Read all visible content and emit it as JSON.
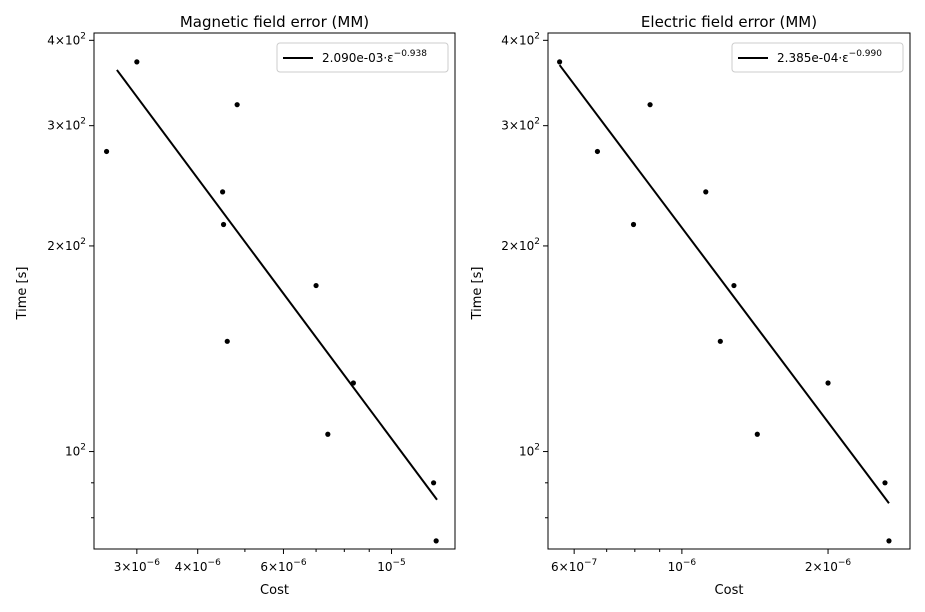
{
  "chart_data": [
    {
      "type": "scatter",
      "title": "Magnetic field error (MM)",
      "xlabel": "Cost",
      "ylabel": "Time [s]",
      "xscale": "log",
      "yscale": "log",
      "xlim": [
        2.45e-06,
        1.35e-05
      ],
      "ylim": [
        72,
        410
      ],
      "x_ticks": [
        {
          "value": 3e-06,
          "label": "3×10",
          "exp": "−6"
        },
        {
          "value": 4e-06,
          "label": "4×10",
          "exp": "−6"
        },
        {
          "value": 6e-06,
          "label": "6×10",
          "exp": "−6"
        },
        {
          "value": 1e-05,
          "label": "10",
          "exp": "−5"
        }
      ],
      "y_ticks": [
        {
          "value": 100,
          "label": "10",
          "exp": "2"
        },
        {
          "value": 200,
          "label": "2×10",
          "exp": "2"
        },
        {
          "value": 300,
          "label": "3×10",
          "exp": "2"
        },
        {
          "value": 400,
          "label": "4×10",
          "exp": "2"
        }
      ],
      "points": [
        {
          "x": 2.6e-06,
          "y": 275
        },
        {
          "x": 3e-06,
          "y": 372
        },
        {
          "x": 4.5e-06,
          "y": 240
        },
        {
          "x": 4.52e-06,
          "y": 215
        },
        {
          "x": 4.6e-06,
          "y": 145
        },
        {
          "x": 4.82e-06,
          "y": 322
        },
        {
          "x": 7e-06,
          "y": 175
        },
        {
          "x": 7.4e-06,
          "y": 106
        },
        {
          "x": 8.35e-06,
          "y": 126
        },
        {
          "x": 1.22e-05,
          "y": 90
        },
        {
          "x": 1.235e-05,
          "y": 74
        }
      ],
      "fit": {
        "coef": "2.090e-03",
        "exp": "−0.938",
        "x_from": 2.73e-06,
        "x_to": 1.24e-05,
        "y_from": 362,
        "y_to": 85
      },
      "legend_position": "top-right"
    },
    {
      "type": "scatter",
      "title": "Electric field error (MM)",
      "xlabel": "Cost",
      "ylabel": "Time [s]",
      "xscale": "log",
      "yscale": "log",
      "xlim": [
        5.3e-07,
        2.95e-06
      ],
      "ylim": [
        72,
        410
      ],
      "x_ticks": [
        {
          "value": 6e-07,
          "label": "6×10",
          "exp": "−7"
        },
        {
          "value": 1e-06,
          "label": "10",
          "exp": "−6"
        },
        {
          "value": 2e-06,
          "label": "2×10",
          "exp": "−6"
        }
      ],
      "y_ticks": [
        {
          "value": 100,
          "label": "10",
          "exp": "2"
        },
        {
          "value": 200,
          "label": "2×10",
          "exp": "2"
        },
        {
          "value": 300,
          "label": "3×10",
          "exp": "2"
        },
        {
          "value": 400,
          "label": "4×10",
          "exp": "2"
        }
      ],
      "points": [
        {
          "x": 5.6e-07,
          "y": 372
        },
        {
          "x": 6.7e-07,
          "y": 275
        },
        {
          "x": 7.95e-07,
          "y": 215
        },
        {
          "x": 8.6e-07,
          "y": 322
        },
        {
          "x": 1.12e-06,
          "y": 240
        },
        {
          "x": 1.2e-06,
          "y": 145
        },
        {
          "x": 1.28e-06,
          "y": 175
        },
        {
          "x": 1.43e-06,
          "y": 106
        },
        {
          "x": 2e-06,
          "y": 126
        },
        {
          "x": 2.62e-06,
          "y": 90
        },
        {
          "x": 2.67e-06,
          "y": 74
        }
      ],
      "fit": {
        "coef": "2.385e-04",
        "exp": "−0.990",
        "x_from": 5.6e-07,
        "x_to": 2.67e-06,
        "y_from": 368,
        "y_to": 84
      },
      "legend_position": "top-right"
    }
  ]
}
